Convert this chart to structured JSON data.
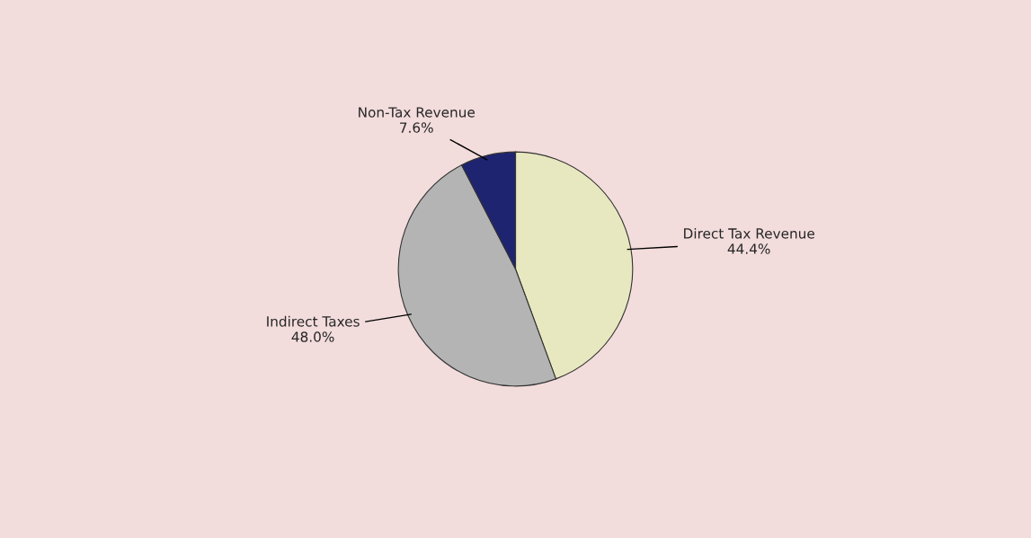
{
  "chart_data": {
    "type": "pie",
    "categories": [
      "Direct Tax Revenue",
      "Indirect Taxes",
      "Non-Tax Revenue"
    ],
    "values": [
      44.4,
      48.0,
      7.6
    ],
    "value_labels": [
      "44.4%",
      "48.0%",
      "7.6%"
    ],
    "colors": [
      "#e8e8c0",
      "#b4b4b4",
      "#1f2470"
    ]
  }
}
